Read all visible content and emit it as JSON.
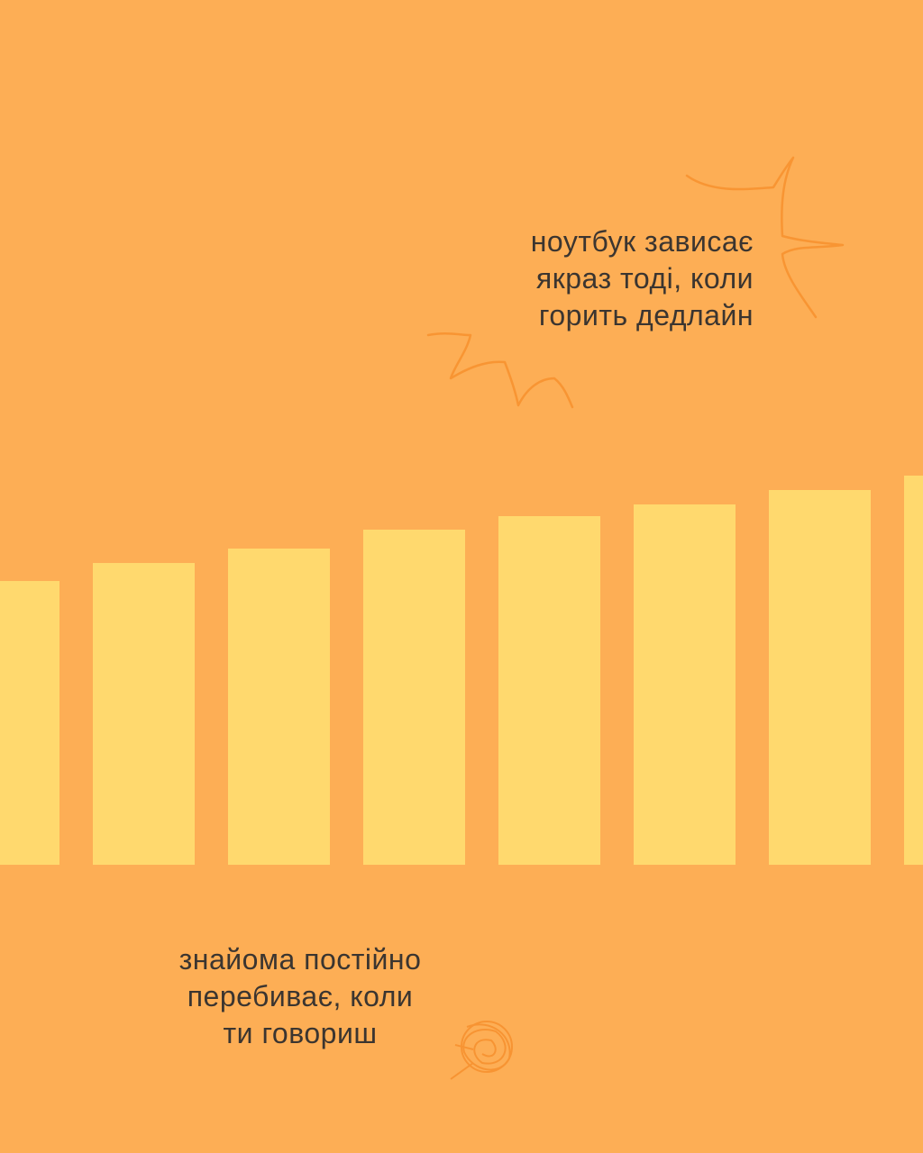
{
  "colors": {
    "background": "#FDAE55",
    "bars": "#FFD96E",
    "doodle": "#F7902E",
    "text": "#3b3530"
  },
  "bars": {
    "relative_heights": [
      0.73,
      0.776,
      0.813,
      0.86,
      0.896,
      0.926,
      0.963,
      1.0
    ]
  },
  "captions": {
    "top": [
      "ноутбук зависає",
      "якраз тоді, коли",
      "горить дедлайн"
    ],
    "bottom": [
      "знайома постійно",
      "перебиває, коли",
      "ти говориш"
    ]
  },
  "decorations": {
    "top": "burst-scribble-icon",
    "bottom": "scribble-ball-icon"
  }
}
